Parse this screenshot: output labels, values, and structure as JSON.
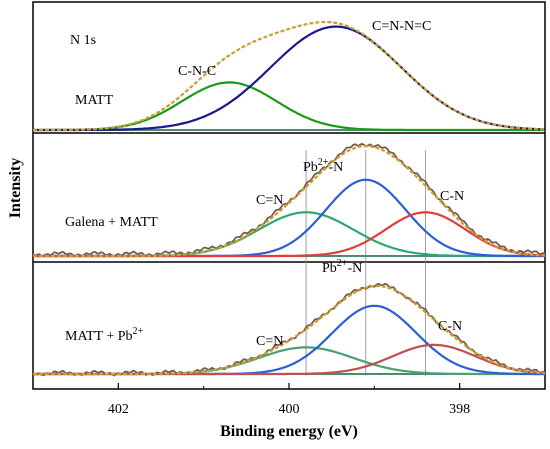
{
  "chart_data": {
    "type": "line",
    "xlabel": "Binding energy (eV)",
    "ylabel": "Intensity",
    "xlim": [
      403,
      397
    ],
    "x_reversed": true,
    "xticks": [
      "402",
      "400",
      "398"
    ],
    "grid": false,
    "panels": [
      {
        "id": "top",
        "sample_label": "MATT",
        "peaks": [
          {
            "center": 400.7,
            "fwhm": 1.3,
            "height": 0.46,
            "color": "#1a9a1a",
            "label": "C-N-C"
          },
          {
            "center": 399.45,
            "fwhm": 1.8,
            "height": 1.0,
            "color": "#1a1a8c",
            "label": "C=N-N=C"
          }
        ],
        "annotations": [
          {
            "text": "N 1s",
            "x": 402.6,
            "y": "top"
          },
          {
            "text": "C-N-C",
            "x": 401.0,
            "y": "peak"
          },
          {
            "text": "C=N-N=C",
            "x": 399.3,
            "y": "peak"
          }
        ]
      },
      {
        "id": "middle",
        "sample_label": "Galena + MATT",
        "peaks": [
          {
            "center": 399.8,
            "fwhm": 1.3,
            "height": 0.43,
            "color": "#2ea870",
            "label": "C=N"
          },
          {
            "center": 399.1,
            "fwhm": 1.1,
            "height": 0.75,
            "color": "#2a5fd6",
            "label": "Pb2+-N"
          },
          {
            "center": 398.4,
            "fwhm": 1.1,
            "height": 0.43,
            "color": "#e03c3c",
            "label": "C-N"
          }
        ],
        "annotations": [
          {
            "text": "Pb",
            "sup": "2+",
            "suffix": "-N",
            "x": 399.4
          },
          {
            "text": "C=N",
            "x": 400.05
          },
          {
            "text": "C-N",
            "x": 398.2
          }
        ]
      },
      {
        "id": "bottom",
        "sample_label": "MATT + Pb",
        "sample_label_sup": "2+",
        "peaks": [
          {
            "center": 399.8,
            "fwhm": 1.3,
            "height": 0.32,
            "color": "#4aa070",
            "label": "C=N"
          },
          {
            "center": 399.0,
            "fwhm": 1.15,
            "height": 0.82,
            "color": "#2a5fd6",
            "label": "Pb2+-N"
          },
          {
            "center": 398.3,
            "fwhm": 1.15,
            "height": 0.35,
            "color": "#c0504d",
            "label": "C-N"
          }
        ],
        "annotations": [
          {
            "text": "Pb",
            "sup": "2+",
            "suffix": "-N",
            "x": 399.2
          },
          {
            "text": "C=N",
            "x": 400.05
          },
          {
            "text": "C-N",
            "x": 398.1
          }
        ]
      }
    ],
    "reference_lines_x": [
      399.8,
      399.1,
      398.4
    ],
    "colors": {
      "envelope": "#c8a030",
      "raw_data": "#7a5a50",
      "background": "#4c8c6c"
    }
  }
}
